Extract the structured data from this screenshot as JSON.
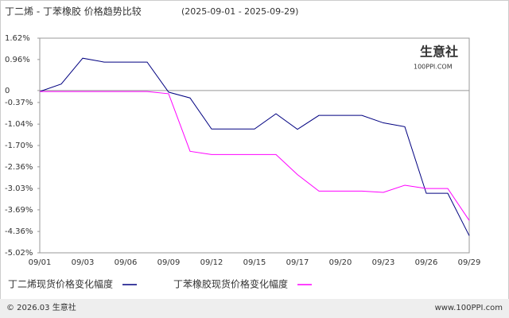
{
  "chart_data": {
    "type": "line",
    "title": "丁二烯 - 丁苯橡胶 价格趋势比较",
    "subtitle": "(2025-09-01 - 2025-09-29)",
    "categories": [
      "09/01",
      null,
      "09/03",
      null,
      "09/06",
      null,
      "09/09",
      null,
      "09/12",
      null,
      "09/15",
      null,
      "09/17",
      null,
      "09/20",
      null,
      "09/23",
      null,
      "09/26",
      null,
      "09/29"
    ],
    "series": [
      {
        "name": "丁二烯现货价格变化幅度",
        "color": "#000080",
        "values": [
          -0.03,
          0.2,
          1.0,
          0.88,
          0.88,
          0.88,
          -0.05,
          -0.23,
          -1.19,
          -1.19,
          -1.19,
          -0.72,
          -1.2,
          -0.77,
          -0.77,
          -0.77,
          -1.0,
          -1.12,
          -3.18,
          -3.18,
          -4.49
        ]
      },
      {
        "name": "丁苯橡胶现货价格变化幅度",
        "color": "#ff00ff",
        "values": [
          -0.03,
          -0.03,
          -0.03,
          -0.03,
          -0.03,
          -0.03,
          -0.1,
          -1.88,
          -1.98,
          -1.98,
          -1.98,
          -1.98,
          -2.6,
          -3.11,
          -3.11,
          -3.11,
          -3.15,
          -2.93,
          -3.03,
          -3.03,
          -4.02
        ]
      }
    ],
    "ylim": [
      -5.02,
      1.62
    ],
    "yticks": [
      {
        "value": 1.62,
        "label": "1.62%"
      },
      {
        "value": 0.96,
        "label": "0.96%"
      },
      0,
      {
        "value": -0.37,
        "label": "-0.37%"
      },
      {
        "value": -1.04,
        "label": "-1.04%"
      },
      {
        "value": -1.7,
        "label": "-1.70%"
      },
      {
        "value": -2.36,
        "label": "-2.36%"
      },
      {
        "value": -3.03,
        "label": "-3.03%"
      },
      {
        "value": -3.69,
        "label": "-3.69%"
      },
      {
        "value": -4.36,
        "label": "-4.36%"
      },
      {
        "value": -5.02,
        "label": "-5.02%"
      }
    ],
    "watermark": [
      "生意社",
      "100PPI.COM"
    ],
    "footer_left": "© 2026.03 生意社",
    "footer_right": "www.100PPI.com"
  }
}
